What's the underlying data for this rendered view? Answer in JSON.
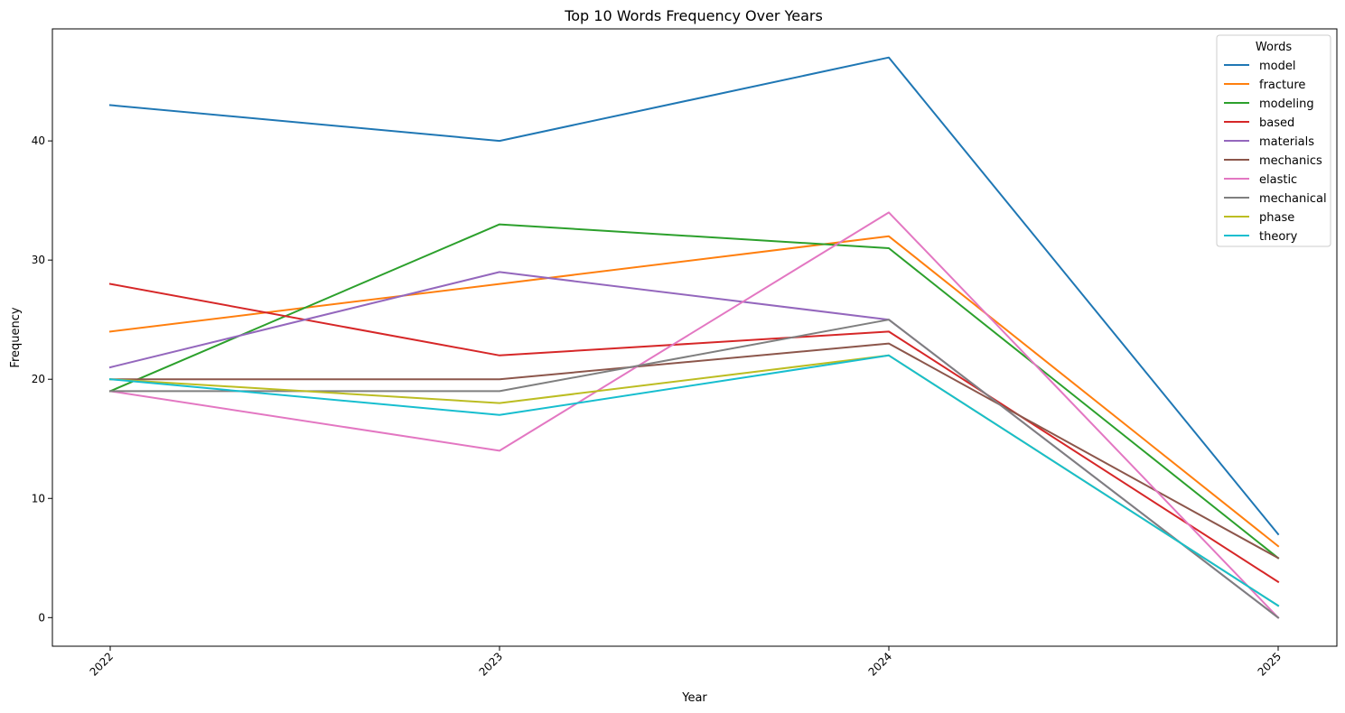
{
  "chart_data": {
    "type": "line",
    "title": "Top 10 Words Frequency Over Years",
    "xlabel": "Year",
    "ylabel": "Frequency",
    "x": [
      "2022",
      "2023",
      "2024",
      "2025"
    ],
    "ylim": [
      -2.4,
      49.4
    ],
    "yticks": [
      0,
      10,
      20,
      30,
      40
    ],
    "grid": false,
    "legend": {
      "title": "Words",
      "placement": "top-right"
    },
    "series": [
      {
        "name": "model",
        "color": "#1f77b4",
        "values": [
          43,
          40,
          47,
          7
        ]
      },
      {
        "name": "fracture",
        "color": "#ff7f0e",
        "values": [
          24,
          28,
          32,
          6
        ]
      },
      {
        "name": "modeling",
        "color": "#2ca02c",
        "values": [
          19,
          33,
          31,
          5
        ]
      },
      {
        "name": "based",
        "color": "#d62728",
        "values": [
          28,
          22,
          24,
          3
        ]
      },
      {
        "name": "materials",
        "color": "#9467bd",
        "values": [
          21,
          29,
          25,
          0
        ]
      },
      {
        "name": "mechanics",
        "color": "#8c564b",
        "values": [
          20,
          20,
          23,
          5
        ]
      },
      {
        "name": "elastic",
        "color": "#e377c2",
        "values": [
          19,
          14,
          34,
          0
        ]
      },
      {
        "name": "mechanical",
        "color": "#7f7f7f",
        "values": [
          19,
          19,
          25,
          0
        ]
      },
      {
        "name": "phase",
        "color": "#bcbd22",
        "values": [
          20,
          18,
          22,
          1
        ]
      },
      {
        "name": "theory",
        "color": "#17becf",
        "values": [
          20,
          17,
          22,
          1
        ]
      }
    ]
  }
}
